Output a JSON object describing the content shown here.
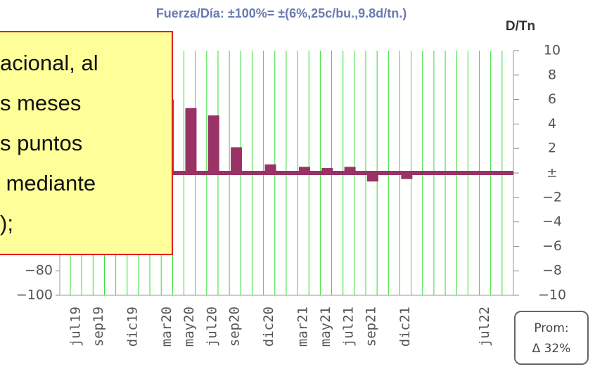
{
  "chart_data": {
    "type": "bar",
    "title": "Fuerza/Día: ±100%= ±(6%,25c/bu.,9.8d/tn.)",
    "y2_label": "D/Tn",
    "categories": [
      "jul19",
      null,
      "sep19",
      null,
      null,
      "dic19",
      null,
      null,
      "mar20",
      null,
      "may20",
      null,
      "jul20",
      null,
      "sep20",
      null,
      null,
      "dic20",
      null,
      null,
      "mar21",
      null,
      "may21",
      null,
      "jul21",
      null,
      "sep21",
      null,
      null,
      "dic21",
      null,
      null,
      null,
      null,
      null,
      null,
      "jul22",
      null,
      null
    ],
    "series": [
      {
        "name": "D/Tn",
        "color": "#993366",
        "axis": "y2",
        "values": [
          null,
          null,
          null,
          null,
          null,
          null,
          null,
          null,
          6,
          null,
          5.3,
          null,
          4.7,
          null,
          2.1,
          null,
          null,
          0.7,
          null,
          null,
          0.5,
          null,
          0.4,
          null,
          0.5,
          null,
          -0.7,
          null,
          null,
          -0.5,
          null,
          null,
          null,
          null,
          null,
          null,
          null,
          null,
          null
        ]
      }
    ],
    "ylim": [
      -100,
      100
    ],
    "yticks": [
      {
        "value": -80,
        "label": "−80"
      },
      {
        "value": -100,
        "label": "−100"
      }
    ],
    "y2lim": [
      -10,
      10
    ],
    "y2ticks": [
      10,
      8,
      6,
      4,
      2,
      {
        "value": 0,
        "label": "±"
      },
      {
        "value": -2,
        "label": "−2"
      },
      {
        "value": -4,
        "label": "−4"
      },
      {
        "value": -6,
        "label": "−6"
      },
      {
        "value": -8,
        "label": "−8"
      },
      {
        "value": -10,
        "label": "−10"
      }
    ],
    "grid": true,
    "average_box": {
      "title": "Prom:",
      "value": "Δ 32%"
    }
  },
  "overlay": {
    "lines": [
      "acional, al",
      "s meses",
      "s puntos",
      " mediante",
      ");"
    ]
  }
}
